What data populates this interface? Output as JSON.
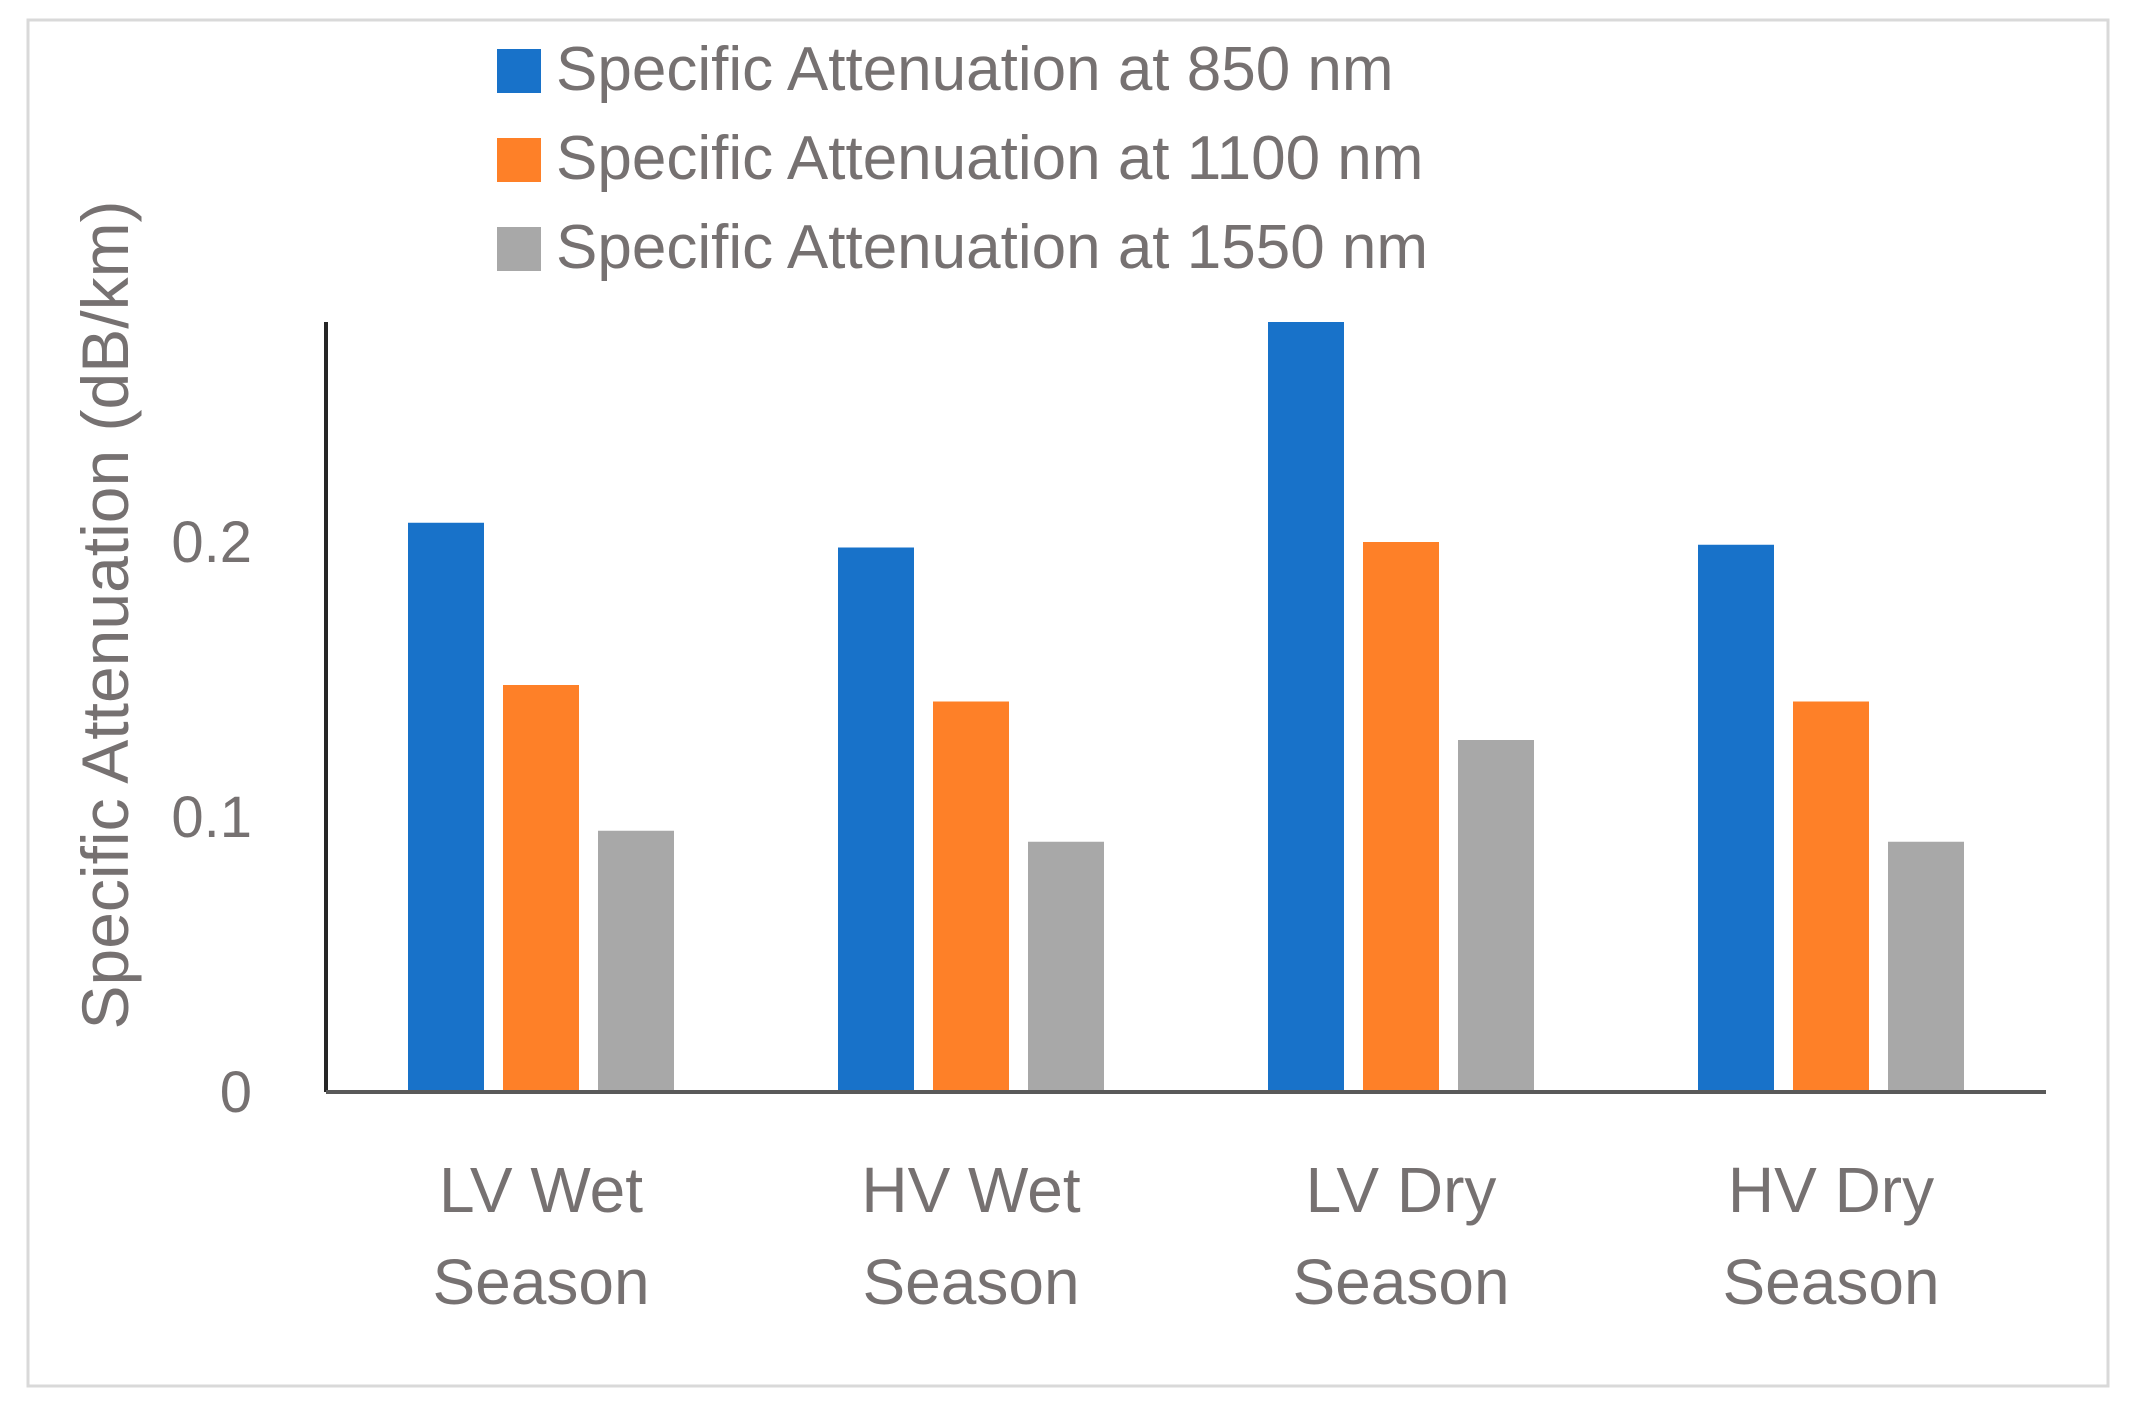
{
  "chart_data": {
    "type": "bar",
    "title": "",
    "xlabel": "",
    "ylabel": "Specific Attenuation (dB/km)",
    "ylim": [
      0,
      0.28
    ],
    "yticks": [
      {
        "value": 0,
        "label": "0"
      },
      {
        "value": 0.1,
        "label": "0.1"
      },
      {
        "value": 0.2,
        "label": "0.2"
      }
    ],
    "categories": [
      [
        "LV Wet",
        "Season"
      ],
      [
        "HV Wet",
        "Season"
      ],
      [
        "LV Dry",
        "Season"
      ],
      [
        "HV Dry",
        "Season"
      ]
    ],
    "series": [
      {
        "name": "Specific Attenuation at 850 nm",
        "color": "#1872c9",
        "values": [
          0.207,
          0.198,
          0.28,
          0.199
        ]
      },
      {
        "name": "Specific Attenuation at 1100 nm",
        "color": "#fe8028",
        "values": [
          0.148,
          0.142,
          0.2,
          0.142
        ]
      },
      {
        "name": "Specific Attenuation at 1550 nm",
        "color": "#a8a8a8",
        "values": [
          0.095,
          0.091,
          0.128,
          0.091
        ]
      }
    ],
    "legend_position": "top",
    "grid": false
  }
}
